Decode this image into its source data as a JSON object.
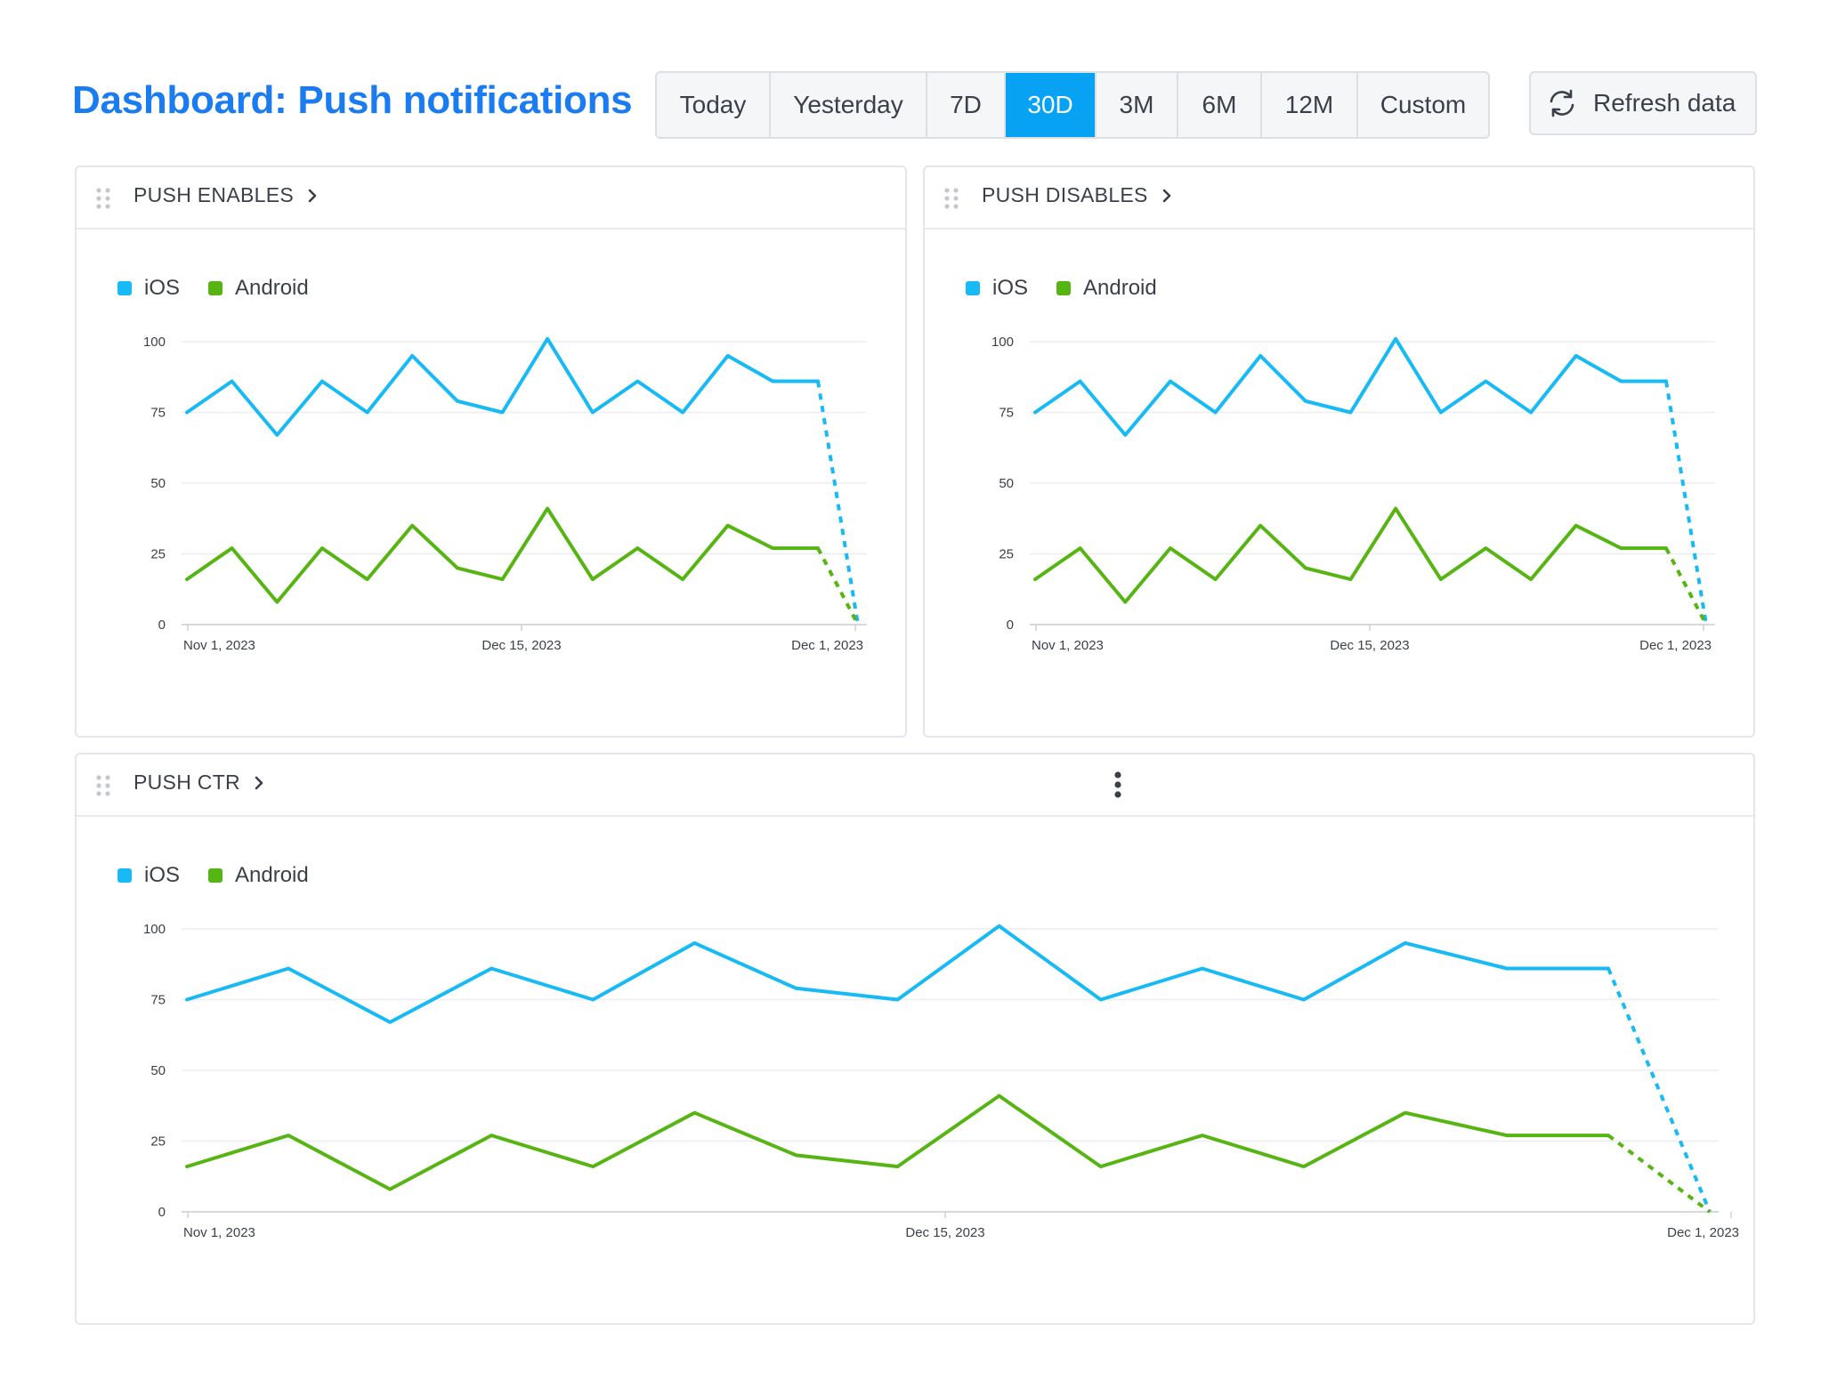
{
  "header": {
    "title": "Dashboard: Push notifications",
    "refresh_label": "Refresh data",
    "refresh_icon": "refresh-icon"
  },
  "date_ranges": [
    {
      "label": "Today",
      "active": false
    },
    {
      "label": "Yesterday",
      "active": false
    },
    {
      "label": "7D",
      "active": false
    },
    {
      "label": "30D",
      "active": true
    },
    {
      "label": "3M",
      "active": false
    },
    {
      "label": "6M",
      "active": false
    },
    {
      "label": "12M",
      "active": false
    },
    {
      "label": "Custom",
      "active": false
    }
  ],
  "colors": {
    "accent": "#1a7cf0",
    "active_range": "#07a2f3",
    "ios": "#17baf5",
    "android": "#56b513"
  },
  "panels": [
    {
      "id": "push-enables",
      "title": "PUSH ENABLES",
      "legend": [
        "iOS",
        "Android"
      ]
    },
    {
      "id": "push-disables",
      "title": "PUSH DISABLES",
      "legend": [
        "iOS",
        "Android"
      ]
    },
    {
      "id": "push-ctr",
      "title": "PUSH CTR",
      "legend": [
        "iOS",
        "Android"
      ],
      "menu_icon": "more-vertical-icon"
    }
  ],
  "chart_data": [
    {
      "type": "line",
      "panel": "PUSH ENABLES",
      "x_ticks": [
        "Nov 1, 2023",
        "Dec 15, 2023",
        "Dec 1, 2023"
      ],
      "y_ticks": [
        0,
        25,
        50,
        75,
        100
      ],
      "ylim": [
        0,
        100
      ],
      "grid": true,
      "legend_position": "top-left",
      "series": [
        {
          "name": "iOS",
          "values": [
            75,
            86,
            67,
            86,
            75,
            95,
            79,
            75,
            101,
            75,
            86,
            75,
            95,
            86,
            86
          ],
          "projected_end": 0
        },
        {
          "name": "Android",
          "values": [
            16,
            27,
            8,
            27,
            16,
            35,
            20,
            16,
            41,
            16,
            27,
            16,
            35,
            27,
            27
          ],
          "projected_end": 0
        }
      ]
    },
    {
      "type": "line",
      "panel": "PUSH DISABLES",
      "x_ticks": [
        "Nov 1, 2023",
        "Dec 15, 2023",
        "Dec 1, 2023"
      ],
      "y_ticks": [
        0,
        25,
        50,
        75,
        100
      ],
      "ylim": [
        0,
        100
      ],
      "grid": true,
      "legend_position": "top-left",
      "series": [
        {
          "name": "iOS",
          "values": [
            75,
            86,
            67,
            86,
            75,
            95,
            79,
            75,
            101,
            75,
            86,
            75,
            95,
            86,
            86
          ],
          "projected_end": 0
        },
        {
          "name": "Android",
          "values": [
            16,
            27,
            8,
            27,
            16,
            35,
            20,
            16,
            41,
            16,
            27,
            16,
            35,
            27,
            27
          ],
          "projected_end": 0
        }
      ]
    },
    {
      "type": "line",
      "panel": "PUSH CTR",
      "x_ticks": [
        "Nov 1, 2023",
        "Dec 15, 2023",
        "Dec 1, 2023"
      ],
      "y_ticks": [
        0,
        25,
        50,
        75,
        100
      ],
      "ylim": [
        0,
        100
      ],
      "grid": true,
      "legend_position": "top-left",
      "series": [
        {
          "name": "iOS",
          "values": [
            75,
            86,
            67,
            86,
            75,
            95,
            79,
            75,
            101,
            75,
            86,
            75,
            95,
            86,
            86
          ],
          "projected_end": 0
        },
        {
          "name": "Android",
          "values": [
            16,
            27,
            8,
            27,
            16,
            35,
            20,
            16,
            41,
            16,
            27,
            16,
            35,
            27,
            27
          ],
          "projected_end": 0
        }
      ]
    }
  ]
}
